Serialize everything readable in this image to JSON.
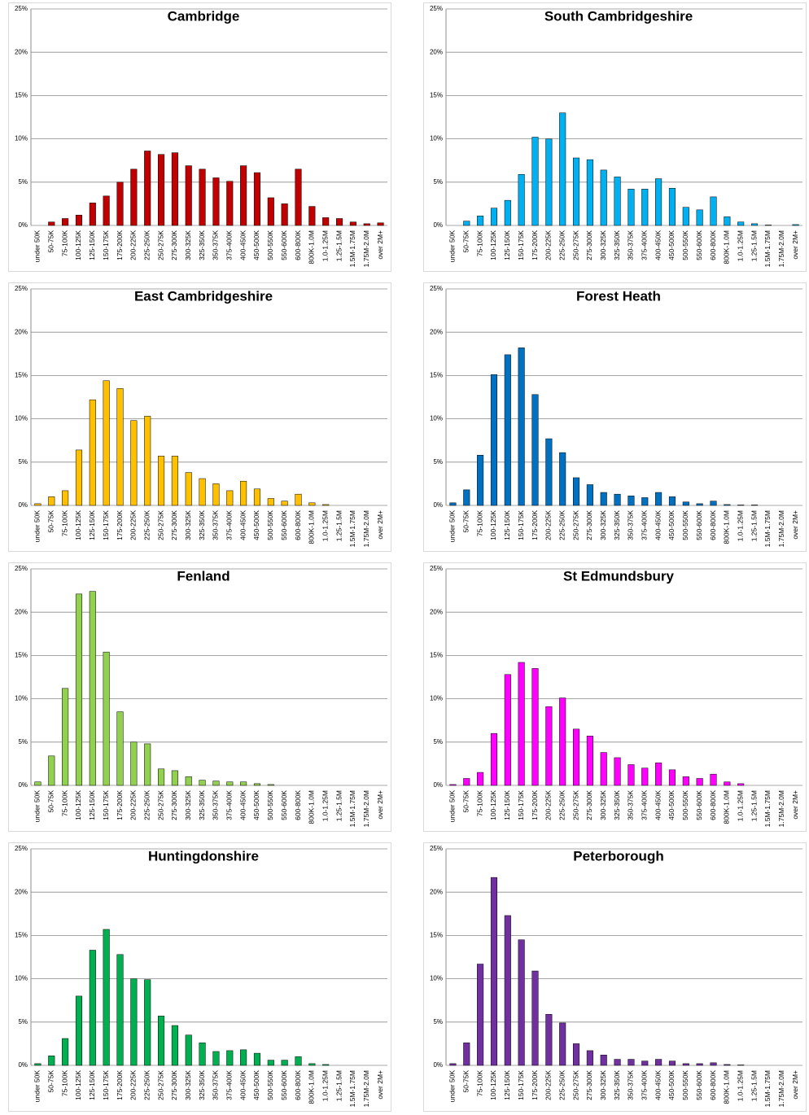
{
  "chart_data": [
    {
      "type": "bar",
      "title": "Cambridge",
      "color": "#c00000",
      "grid": true,
      "ylim": [
        0,
        25
      ],
      "yticks": [
        {
          "value": 0,
          "label": "0%"
        },
        {
          "value": 5,
          "label": "5%"
        },
        {
          "value": 10,
          "label": "10%"
        },
        {
          "value": 15,
          "label": "15%"
        },
        {
          "value": 20,
          "label": "20%"
        },
        {
          "value": 25,
          "label": "25%"
        }
      ],
      "categories": [
        "under 50K",
        "50-75K",
        "75-100K",
        "100-125K",
        "125-150K",
        "150-175K",
        "175-200K",
        "200-225K",
        "225-250K",
        "250-275K",
        "275-300K",
        "300-325K",
        "325-350K",
        "350-375K",
        "375-400K",
        "400-450K",
        "450-500K",
        "500-550K",
        "550-600K",
        "600-800K",
        "800K-1.0M",
        "1.0-1.25M",
        "1.25-1.5M",
        "1.5M-1.75M",
        "1.75M-2.0M",
        "over 2M+"
      ],
      "values": [
        0,
        0.4,
        0.8,
        1.2,
        2.6,
        3.4,
        5.0,
        6.5,
        8.6,
        8.2,
        8.4,
        6.9,
        6.5,
        5.5,
        5.1,
        6.9,
        6.1,
        3.2,
        2.5,
        6.5,
        2.2,
        0.9,
        0.8,
        0.4,
        0.2,
        0.3
      ]
    },
    {
      "type": "bar",
      "title": "South Cambridgeshire",
      "color": "#00b0f0",
      "grid": true,
      "ylim": [
        0,
        25
      ],
      "yticks": [
        {
          "value": 0,
          "label": "0%"
        },
        {
          "value": 5,
          "label": "5%"
        },
        {
          "value": 10,
          "label": "10%"
        },
        {
          "value": 15,
          "label": "15%"
        },
        {
          "value": 20,
          "label": "20%"
        },
        {
          "value": 25,
          "label": "25%"
        }
      ],
      "categories": [
        "under 50K",
        "50-75K",
        "75-100K",
        "100-125K",
        "125-150K",
        "150-175K",
        "175-200K",
        "200-225K",
        "225-250K",
        "250-275K",
        "275-300K",
        "300-325K",
        "325-350K",
        "350-375K",
        "375-400K",
        "400-450K",
        "450-500K",
        "500-550K",
        "550-600K",
        "600-800K",
        "800K-1.0M",
        "1.0-1.25M",
        "1.25-1.5M",
        "1.5M-1.75M",
        "1.75M-2.0M",
        "over 2M+"
      ],
      "values": [
        0,
        0.5,
        1.1,
        2.0,
        2.9,
        5.9,
        10.2,
        10.0,
        13.0,
        7.8,
        7.6,
        6.4,
        5.6,
        4.2,
        4.2,
        5.4,
        4.3,
        2.1,
        1.8,
        3.3,
        1.0,
        0.4,
        0.2,
        0.05,
        0,
        0.1
      ]
    },
    {
      "type": "bar",
      "title": "East Cambridgeshire",
      "color": "#ffc000",
      "grid": true,
      "ylim": [
        0,
        25
      ],
      "yticks": [
        {
          "value": 0,
          "label": "0%"
        },
        {
          "value": 5,
          "label": "5%"
        },
        {
          "value": 10,
          "label": "10%"
        },
        {
          "value": 15,
          "label": "15%"
        },
        {
          "value": 20,
          "label": "20%"
        },
        {
          "value": 25,
          "label": "25%"
        }
      ],
      "categories": [
        "under 50K",
        "50-75K",
        "75-100K",
        "100-125K",
        "125-150K",
        "150-175K",
        "175-200K",
        "200-225K",
        "225-250K",
        "250-275K",
        "275-300K",
        "300-325K",
        "325-350K",
        "350-375K",
        "375-400K",
        "400-450K",
        "450-500K",
        "500-550K",
        "550-600K",
        "600-800K",
        "800K-1.0M",
        "1.0-1.25M",
        "1.25-1.5M",
        "1.5M-1.75M",
        "1.75M-2.0M",
        "over 2M+"
      ],
      "values": [
        0.2,
        1.0,
        1.7,
        6.4,
        12.2,
        14.4,
        13.5,
        9.8,
        10.3,
        5.7,
        5.7,
        3.8,
        3.1,
        2.5,
        1.7,
        2.8,
        1.9,
        0.8,
        0.5,
        1.3,
        0.3,
        0.1,
        0,
        0,
        0,
        0
      ]
    },
    {
      "type": "bar",
      "title": "Forest Heath",
      "color": "#0070c0",
      "grid": true,
      "ylim": [
        0,
        25
      ],
      "yticks": [
        {
          "value": 0,
          "label": "0%"
        },
        {
          "value": 5,
          "label": "5%"
        },
        {
          "value": 10,
          "label": "10%"
        },
        {
          "value": 15,
          "label": "15%"
        },
        {
          "value": 20,
          "label": "20%"
        },
        {
          "value": 25,
          "label": "25%"
        }
      ],
      "categories": [
        "under 50K",
        "50-75K",
        "75-100K",
        "100-125K",
        "125-150K",
        "150-175K",
        "175-200K",
        "200-225K",
        "225-250K",
        "250-275K",
        "275-300K",
        "300-325K",
        "325-350K",
        "350-375K",
        "375-400K",
        "400-450K",
        "450-500K",
        "500-550K",
        "550-600K",
        "600-800K",
        "800K-1.0M",
        "1.0-1.25M",
        "1.25-1.5M",
        "1.5M-1.75M",
        "1.75M-2.0M",
        "over 2M+"
      ],
      "values": [
        0.3,
        1.8,
        5.8,
        15.1,
        17.4,
        18.2,
        12.8,
        7.7,
        6.1,
        3.2,
        2.4,
        1.5,
        1.3,
        1.1,
        0.9,
        1.5,
        1.0,
        0.4,
        0.2,
        0.5,
        0.1,
        0.05,
        0.05,
        0,
        0,
        0
      ]
    },
    {
      "type": "bar",
      "title": "Fenland",
      "color": "#92d050",
      "grid": true,
      "ylim": [
        0,
        25
      ],
      "yticks": [
        {
          "value": 0,
          "label": "0%"
        },
        {
          "value": 5,
          "label": "5%"
        },
        {
          "value": 10,
          "label": "10%"
        },
        {
          "value": 15,
          "label": "15%"
        },
        {
          "value": 20,
          "label": "20%"
        },
        {
          "value": 25,
          "label": "25%"
        }
      ],
      "categories": [
        "under 50K",
        "50-75K",
        "75-100K",
        "100-125K",
        "125-150K",
        "150-175K",
        "175-200K",
        "200-225K",
        "225-250K",
        "250-275K",
        "275-300K",
        "300-325K",
        "325-350K",
        "350-375K",
        "375-400K",
        "400-450K",
        "450-500K",
        "500-550K",
        "550-600K",
        "600-800K",
        "800K-1.0M",
        "1.0-1.25M",
        "1.25-1.5M",
        "1.5M-1.75M",
        "1.75M-2.0M",
        "over 2M+"
      ],
      "values": [
        0.4,
        3.4,
        11.2,
        22.1,
        22.4,
        15.4,
        8.5,
        5.0,
        4.8,
        1.9,
        1.7,
        1.0,
        0.6,
        0.5,
        0.4,
        0.4,
        0.2,
        0.1,
        0,
        0,
        0,
        0,
        0,
        0,
        0,
        0
      ]
    },
    {
      "type": "bar",
      "title": "St Edmundsbury",
      "color": "#ff00ff",
      "grid": true,
      "ylim": [
        0,
        25
      ],
      "yticks": [
        {
          "value": 0,
          "label": "0%"
        },
        {
          "value": 5,
          "label": "5%"
        },
        {
          "value": 10,
          "label": "10%"
        },
        {
          "value": 15,
          "label": "15%"
        },
        {
          "value": 20,
          "label": "20%"
        },
        {
          "value": 25,
          "label": "25%"
        }
      ],
      "categories": [
        "under 50K",
        "50-75K",
        "75-100K",
        "100-125K",
        "125-150K",
        "150-175K",
        "175-200K",
        "200-225K",
        "225-250K",
        "250-275K",
        "275-300K",
        "300-325K",
        "325-350K",
        "350-375K",
        "375-400K",
        "400-450K",
        "450-500K",
        "500-550K",
        "550-600K",
        "600-800K",
        "800K-1.0M",
        "1.0-1.25M",
        "1.25-1.5M",
        "1.5M-1.75M",
        "1.75M-2.0M",
        "over 2M+"
      ],
      "values": [
        0.1,
        0.8,
        1.5,
        6.0,
        12.8,
        14.2,
        13.5,
        9.1,
        10.1,
        6.5,
        5.7,
        3.8,
        3.2,
        2.4,
        2.0,
        2.6,
        1.8,
        1.0,
        0.8,
        1.3,
        0.4,
        0.2,
        0,
        0,
        0,
        0
      ]
    },
    {
      "type": "bar",
      "title": "Huntingdonshire",
      "color": "#00b050",
      "grid": true,
      "ylim": [
        0,
        25
      ],
      "yticks": [
        {
          "value": 0,
          "label": "0%"
        },
        {
          "value": 5,
          "label": "5%"
        },
        {
          "value": 10,
          "label": "10%"
        },
        {
          "value": 15,
          "label": "15%"
        },
        {
          "value": 20,
          "label": "20%"
        },
        {
          "value": 25,
          "label": "25%"
        }
      ],
      "categories": [
        "under 50K",
        "50-75K",
        "75-100K",
        "100-125K",
        "125-150K",
        "150-175K",
        "175-200K",
        "200-225K",
        "225-250K",
        "250-275K",
        "275-300K",
        "300-325K",
        "325-350K",
        "350-375K",
        "375-400K",
        "400-450K",
        "450-500K",
        "500-550K",
        "550-600K",
        "600-800K",
        "800K-1.0M",
        "1.0-1.25M",
        "1.25-1.5M",
        "1.5M-1.75M",
        "1.75M-2.0M",
        "over 2M+"
      ],
      "values": [
        0.2,
        1.1,
        3.1,
        8.0,
        13.3,
        15.7,
        12.8,
        10.0,
        9.9,
        5.7,
        4.6,
        3.5,
        2.6,
        1.6,
        1.7,
        1.8,
        1.4,
        0.6,
        0.6,
        1.0,
        0.2,
        0.1,
        0,
        0,
        0,
        0
      ]
    },
    {
      "type": "bar",
      "title": "Peterborough",
      "color": "#7030a0",
      "grid": true,
      "ylim": [
        0,
        25
      ],
      "yticks": [
        {
          "value": 0,
          "label": "0%"
        },
        {
          "value": 5,
          "label": "5%"
        },
        {
          "value": 10,
          "label": "10%"
        },
        {
          "value": 15,
          "label": "15%"
        },
        {
          "value": 20,
          "label": "20%"
        },
        {
          "value": 25,
          "label": "25%"
        }
      ],
      "categories": [
        "under 50K",
        "50-75K",
        "75-100K",
        "100-125K",
        "125-150K",
        "150-175K",
        "175-200K",
        "200-225K",
        "225-250K",
        "250-275K",
        "275-300K",
        "300-325K",
        "325-350K",
        "350-375K",
        "375-400K",
        "400-450K",
        "450-500K",
        "500-550K",
        "550-600K",
        "600-800K",
        "800K-1.0M",
        "1.0-1.25M",
        "1.25-1.5M",
        "1.5M-1.75M",
        "1.75M-2.0M",
        "over 2M+"
      ],
      "values": [
        0.2,
        2.6,
        11.7,
        21.7,
        17.3,
        14.5,
        10.9,
        5.9,
        4.9,
        2.5,
        1.7,
        1.2,
        0.7,
        0.7,
        0.5,
        0.7,
        0.5,
        0.2,
        0.2,
        0.3,
        0.1,
        0.05,
        0,
        0,
        0,
        0
      ]
    }
  ]
}
